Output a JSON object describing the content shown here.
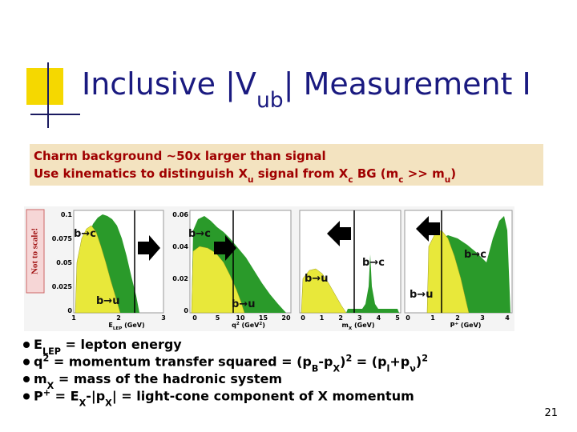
{
  "title": [
    {
      "text": "Inclusive |V"
    },
    {
      "text": "ub",
      "shift": "sub"
    },
    {
      "text": "| Measurement I"
    }
  ],
  "note": {
    "line1": [
      {
        "text": "Charm background ~50x larger than signal"
      }
    ],
    "line2": [
      {
        "text": "Use kinematics to distinguish X"
      },
      {
        "text": "u",
        "shift": "sub"
      },
      {
        "text": " signal from X"
      },
      {
        "text": "c",
        "shift": "sub"
      },
      {
        "text": " BG (m"
      },
      {
        "text": "c",
        "shift": "sub"
      },
      {
        "text": " >> m"
      },
      {
        "text": "u",
        "shift": "sub"
      },
      {
        "text": ")"
      }
    ]
  },
  "figure": {
    "side_label": "Not to scale!",
    "panels": [
      {
        "yticks": [
          "0.1",
          "0.075",
          "0.05",
          "0.025",
          "0"
        ],
        "xticks": [
          "1",
          "2",
          "3"
        ],
        "xlabel": [
          {
            "text": "E"
          },
          {
            "text": "LEP",
            "shift": "sub"
          },
          {
            "text": " (GeV)"
          }
        ],
        "bc": "b→c",
        "bu": "b→u"
      },
      {
        "yticks": [
          "0.06",
          "0.04",
          "0.02",
          "0"
        ],
        "xticks": [
          "0",
          "5",
          "10",
          "15",
          "20"
        ],
        "xlabel": [
          {
            "text": "q"
          },
          {
            "text": "2",
            "shift": "super"
          },
          {
            "text": " (GeV"
          },
          {
            "text": "2",
            "shift": "super"
          },
          {
            "text": ")"
          }
        ],
        "bc": "b→c",
        "bu": "b→u"
      },
      {
        "yticks": [],
        "xticks": [
          "0",
          "1",
          "2",
          "3",
          "4",
          "5"
        ],
        "xlabel": [
          {
            "text": "m"
          },
          {
            "text": "X",
            "shift": "sub"
          },
          {
            "text": " (GeV)"
          }
        ],
        "bc": "b→c",
        "bu": "b→u"
      },
      {
        "yticks": [],
        "xticks": [
          "0",
          "1",
          "2",
          "3",
          "4"
        ],
        "xlabel": [
          {
            "text": "P"
          },
          {
            "text": "+",
            "shift": "super"
          },
          {
            "text": " (GeV)"
          }
        ],
        "bc": "b→c",
        "bu": "b→u"
      }
    ]
  },
  "bullets": [
    [
      {
        "text": "E"
      },
      {
        "text": "LEP",
        "shift": "sub"
      },
      {
        "text": " = lepton energy"
      }
    ],
    [
      {
        "text": "q"
      },
      {
        "text": "2",
        "shift": "super"
      },
      {
        "text": " = momentum transfer squared = (p"
      },
      {
        "text": "B",
        "shift": "sub"
      },
      {
        "text": "-p"
      },
      {
        "text": "X",
        "shift": "sub"
      },
      {
        "text": ")"
      },
      {
        "text": "2",
        "shift": "super"
      },
      {
        "text": " = (p"
      },
      {
        "text": "l",
        "shift": "sub"
      },
      {
        "text": "+p"
      },
      {
        "text": "ν",
        "shift": "sub"
      },
      {
        "text": ")"
      },
      {
        "text": "2",
        "shift": "super"
      }
    ],
    [
      {
        "text": "m"
      },
      {
        "text": "X",
        "shift": "sub"
      },
      {
        "text": " = mass of the hadronic system"
      }
    ],
    [
      {
        "text": "P"
      },
      {
        "text": "+",
        "shift": "super"
      },
      {
        "text": " = E"
      },
      {
        "text": "X",
        "shift": "sub"
      },
      {
        "text": "-|p"
      },
      {
        "text": "X",
        "shift": "sub"
      },
      {
        "text": "| = light-cone  component  of X momentum"
      }
    ]
  ],
  "page_number": "21"
}
